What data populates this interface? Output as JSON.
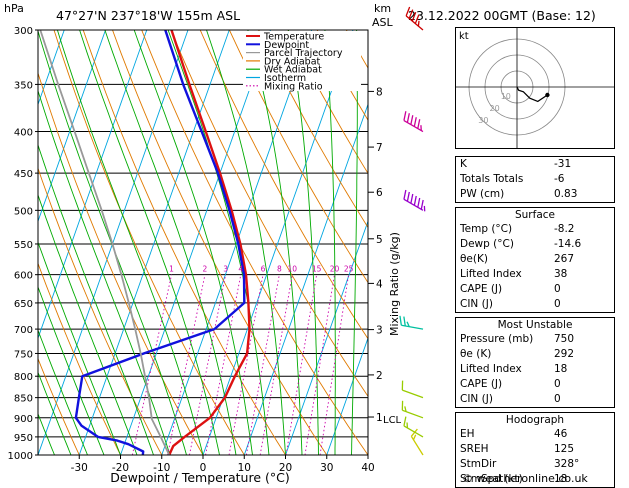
{
  "header": {
    "pressure_unit": "hPa",
    "location": "47°27'N  237°18'W  155m  ASL",
    "height_unit_km": "km",
    "height_unit_asl": "ASL",
    "datetime": "23.12.2022  00GMT  (Base: 12)"
  },
  "chart_data": {
    "type": "line",
    "title": "",
    "xlabel": "Dewpoint / Temperature (°C)",
    "ylabel": "hPa",
    "y_right_label": "Mixing Ratio (g/kg)",
    "xlim": [
      -40,
      40
    ],
    "ylim": [
      1000,
      300
    ],
    "y_scale": "log",
    "x_ticks": [
      -30,
      -20,
      -10,
      0,
      10,
      20,
      30,
      40
    ],
    "pressure_levels": [
      300,
      350,
      400,
      450,
      500,
      550,
      600,
      650,
      700,
      750,
      800,
      850,
      900,
      950,
      1000
    ],
    "height_km_labels": [
      {
        "km": "8",
        "p": 357
      },
      {
        "km": "7",
        "p": 418
      },
      {
        "km": "6",
        "p": 475
      },
      {
        "km": "5",
        "p": 542
      },
      {
        "km": "4",
        "p": 615
      },
      {
        "km": "3",
        "p": 701
      },
      {
        "km": "2",
        "p": 797
      },
      {
        "km": "1",
        "p": 898
      },
      {
        "km": "LCL",
        "p": 903
      }
    ],
    "mixing_ratio_labels": [
      "1",
      "2",
      "3",
      "4",
      "6",
      "8",
      "10",
      "15",
      "20",
      "25"
    ],
    "mixing_ratio_values": [
      1,
      2,
      3,
      4,
      6,
      8,
      10,
      15,
      20,
      25
    ],
    "legend": {
      "placement": "top-center",
      "items": [
        {
          "name": "Temperature",
          "color": "#dd1111",
          "style": "solid"
        },
        {
          "name": "Dewpoint",
          "color": "#1111dd",
          "style": "solid"
        },
        {
          "name": "Parcel Trajectory",
          "color": "#999999",
          "style": "solid"
        },
        {
          "name": "Dry Adiabat",
          "color": "#e07a00",
          "style": "solid"
        },
        {
          "name": "Wet Adiabat",
          "color": "#00aa00",
          "style": "solid"
        },
        {
          "name": "Isotherm",
          "color": "#00a6e0",
          "style": "solid"
        },
        {
          "name": "Mixing Ratio",
          "color": "#cc00aa",
          "style": "dotted"
        }
      ]
    },
    "series": [
      {
        "name": "Temperature",
        "color": "#dd1111",
        "points": [
          [
            1000,
            -8.2
          ],
          [
            975,
            -8.0
          ],
          [
            950,
            -6.0
          ],
          [
            900,
            -1.5
          ],
          [
            850,
            0.4
          ],
          [
            800,
            1.0
          ],
          [
            750,
            2.0
          ],
          [
            700,
            0.5
          ],
          [
            650,
            -2.0
          ],
          [
            600,
            -5.0
          ],
          [
            550,
            -9.0
          ],
          [
            500,
            -14.0
          ],
          [
            450,
            -20.0
          ],
          [
            400,
            -27.0
          ],
          [
            350,
            -35.0
          ],
          [
            300,
            -44.0
          ]
        ]
      },
      {
        "name": "Dewpoint",
        "color": "#1111dd",
        "points": [
          [
            1000,
            -14.6
          ],
          [
            990,
            -14.8
          ],
          [
            970,
            -19.0
          ],
          [
            960,
            -22.0
          ],
          [
            950,
            -27.0
          ],
          [
            920,
            -32.0
          ],
          [
            900,
            -34.0
          ],
          [
            850,
            -35.0
          ],
          [
            800,
            -36.0
          ],
          [
            750,
            -23.0
          ],
          [
            700,
            -8.0
          ],
          [
            650,
            -3.0
          ],
          [
            600,
            -5.5
          ],
          [
            550,
            -9.5
          ],
          [
            500,
            -14.5
          ],
          [
            450,
            -20.5
          ],
          [
            400,
            -28.0
          ],
          [
            350,
            -36.5
          ],
          [
            300,
            -45.5
          ]
        ]
      },
      {
        "name": "Parcel Trajectory",
        "color": "#999999",
        "points": [
          [
            1000,
            -8.2
          ],
          [
            950,
            -11.8
          ],
          [
            903,
            -15.5
          ],
          [
            850,
            -18.0
          ],
          [
            800,
            -20.8
          ],
          [
            750,
            -23.8
          ],
          [
            700,
            -27.2
          ],
          [
            650,
            -31.0
          ],
          [
            600,
            -35.2
          ],
          [
            550,
            -40.0
          ],
          [
            500,
            -45.5
          ],
          [
            450,
            -51.8
          ],
          [
            400,
            -58.8
          ],
          [
            350,
            -66.8
          ],
          [
            300,
            -75.8
          ]
        ]
      }
    ],
    "wind_barbs": [
      {
        "p": 1000,
        "dir": 328,
        "speed": 18
      },
      {
        "p": 950,
        "dir": 300,
        "speed": 15
      },
      {
        "p": 900,
        "dir": 290,
        "speed": 15
      },
      {
        "p": 850,
        "dir": 290,
        "speed": 10
      },
      {
        "p": 700,
        "dir": 280,
        "speed": 25
      },
      {
        "p": 500,
        "dir": 300,
        "speed": 65
      },
      {
        "p": 400,
        "dir": 300,
        "speed": 55
      },
      {
        "p": 300,
        "dir": 310,
        "speed": 45
      }
    ]
  },
  "hodograph": {
    "label": "kt",
    "ring_labels": [
      "10",
      "20",
      "30"
    ],
    "points": [
      [
        0,
        0
      ],
      [
        1,
        -2
      ],
      [
        4,
        -3
      ],
      [
        8,
        -7
      ],
      [
        13,
        -9
      ],
      [
        19,
        -5
      ]
    ]
  },
  "indices": {
    "general": [
      {
        "label": "K",
        "value": "-31"
      },
      {
        "label": "Totals Totals",
        "value": "-6"
      },
      {
        "label": "PW (cm)",
        "value": "0.83"
      }
    ],
    "surface_title": "Surface",
    "surface": [
      {
        "label": "Temp (°C)",
        "value": "-8.2"
      },
      {
        "label": "Dewp (°C)",
        "value": "-14.6"
      },
      {
        "label": "θe(K)",
        "value": "267"
      },
      {
        "label": "Lifted Index",
        "value": "38"
      },
      {
        "label": "CAPE (J)",
        "value": "0"
      },
      {
        "label": "CIN (J)",
        "value": "0"
      }
    ],
    "unstable_title": "Most Unstable",
    "unstable": [
      {
        "label": "Pressure (mb)",
        "value": "750"
      },
      {
        "label": "θe (K)",
        "value": "292"
      },
      {
        "label": "Lifted Index",
        "value": "18"
      },
      {
        "label": "CAPE (J)",
        "value": "0"
      },
      {
        "label": "CIN (J)",
        "value": "0"
      }
    ],
    "hodograph_title": "Hodograph",
    "hodograph": [
      {
        "label": "EH",
        "value": "46"
      },
      {
        "label": "SREH",
        "value": "125"
      },
      {
        "label": "StmDir",
        "value": "328°"
      },
      {
        "label": "StmSpd (kt)",
        "value": "18"
      }
    ]
  },
  "footer": {
    "copyright": "© weatheronline.co.uk"
  }
}
